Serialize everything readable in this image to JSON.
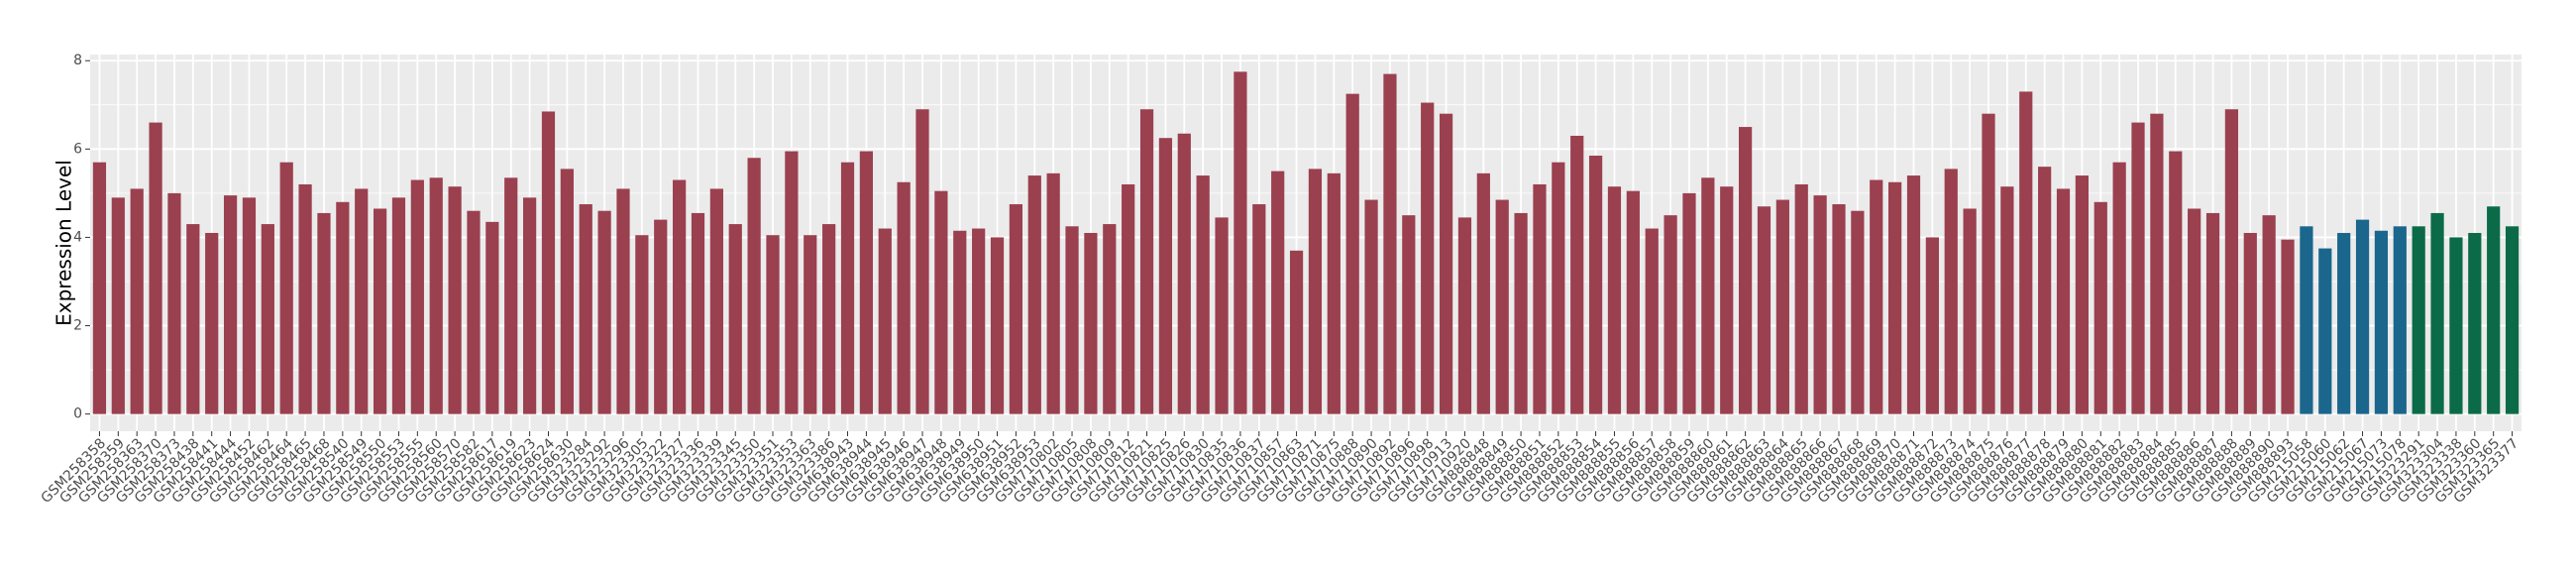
{
  "chart_data": {
    "type": "bar",
    "y_label": "Expression Level",
    "categories": [
      "GSM258358",
      "GSM258359",
      "GSM258363",
      "GSM258370",
      "GSM258373",
      "GSM258438",
      "GSM258441",
      "GSM258444",
      "GSM258452",
      "GSM258462",
      "GSM258464",
      "GSM258465",
      "GSM258468",
      "GSM258540",
      "GSM258549",
      "GSM258550",
      "GSM258553",
      "GSM258555",
      "GSM258560",
      "GSM258570",
      "GSM258582",
      "GSM258617",
      "GSM258619",
      "GSM258623",
      "GSM258624",
      "GSM258630",
      "GSM323284",
      "GSM323292",
      "GSM323296",
      "GSM323305",
      "GSM323322",
      "GSM323327",
      "GSM323336",
      "GSM323339",
      "GSM323345",
      "GSM323350",
      "GSM323351",
      "GSM323353",
      "GSM323363",
      "GSM323386",
      "GSM638943",
      "GSM638944",
      "GSM638945",
      "GSM638946",
      "GSM638947",
      "GSM638948",
      "GSM638949",
      "GSM638950",
      "GSM638951",
      "GSM638952",
      "GSM638953",
      "GSM710802",
      "GSM710805",
      "GSM710808",
      "GSM710809",
      "GSM710812",
      "GSM710821",
      "GSM710825",
      "GSM710826",
      "GSM710830",
      "GSM710835",
      "GSM710836",
      "GSM710837",
      "GSM710857",
      "GSM710863",
      "GSM710871",
      "GSM710875",
      "GSM710888",
      "GSM710890",
      "GSM710892",
      "GSM710896",
      "GSM710898",
      "GSM710913",
      "GSM710920",
      "GSM888848",
      "GSM888849",
      "GSM888850",
      "GSM888851",
      "GSM888852",
      "GSM888853",
      "GSM888854",
      "GSM888855",
      "GSM888856",
      "GSM888857",
      "GSM888858",
      "GSM888859",
      "GSM888860",
      "GSM888861",
      "GSM888862",
      "GSM888863",
      "GSM888864",
      "GSM888865",
      "GSM888866",
      "GSM888867",
      "GSM888868",
      "GSM888869",
      "GSM888870",
      "GSM888871",
      "GSM888872",
      "GSM888873",
      "GSM888874",
      "GSM888875",
      "GSM888876",
      "GSM888877",
      "GSM888878",
      "GSM888879",
      "GSM888880",
      "GSM888881",
      "GSM888882",
      "GSM888883",
      "GSM888884",
      "GSM888885",
      "GSM888886",
      "GSM888887",
      "GSM888888",
      "GSM888889",
      "GSM888890",
      "GSM888893",
      "GSM215058",
      "GSM215060",
      "GSM215062",
      "GSM215067",
      "GSM215073",
      "GSM215078",
      "GSM323291",
      "GSM323304",
      "GSM323338",
      "GSM323360",
      "GSM323365",
      "GSM323377"
    ],
    "values": [
      5.7,
      4.9,
      5.1,
      6.6,
      5.0,
      4.3,
      4.1,
      4.95,
      4.9,
      4.3,
      5.7,
      5.2,
      4.55,
      4.8,
      5.1,
      4.65,
      4.9,
      5.3,
      5.35,
      5.15,
      4.6,
      4.35,
      5.35,
      4.9,
      6.85,
      5.55,
      4.75,
      4.6,
      5.1,
      4.05,
      4.4,
      5.3,
      4.55,
      5.1,
      4.3,
      5.8,
      4.05,
      5.95,
      4.05,
      4.3,
      5.7,
      5.95,
      4.2,
      5.25,
      6.9,
      5.05,
      4.15,
      4.2,
      4.0,
      4.75,
      5.4,
      5.45,
      4.25,
      4.1,
      4.3,
      5.2,
      6.9,
      6.25,
      6.35,
      5.4,
      4.45,
      7.75,
      4.75,
      5.5,
      3.7,
      5.55,
      5.45,
      7.25,
      4.85,
      7.7,
      4.5,
      7.05,
      6.8,
      4.45,
      5.45,
      4.85,
      4.55,
      5.2,
      5.7,
      6.3,
      5.85,
      5.15,
      5.05,
      4.2,
      4.5,
      5.0,
      5.35,
      5.15,
      6.5,
      4.7,
      4.85,
      5.2,
      4.95,
      4.75,
      4.6,
      5.3,
      5.25,
      5.4,
      4.0,
      5.55,
      4.65,
      6.8,
      5.15,
      7.3,
      5.6,
      5.1,
      5.4,
      4.8,
      5.7,
      6.6,
      6.8,
      5.95,
      4.65,
      4.55,
      6.9,
      4.1,
      4.5,
      3.95,
      4.25,
      3.75,
      4.1,
      4.4,
      4.15,
      4.25,
      4.25,
      4.55,
      4.0,
      4.1,
      4.7,
      4.25
    ],
    "colors": [
      "#9b404f",
      "#9b404f",
      "#9b404f",
      "#9b404f",
      "#9b404f",
      "#9b404f",
      "#9b404f",
      "#9b404f",
      "#9b404f",
      "#9b404f",
      "#9b404f",
      "#9b404f",
      "#9b404f",
      "#9b404f",
      "#9b404f",
      "#9b404f",
      "#9b404f",
      "#9b404f",
      "#9b404f",
      "#9b404f",
      "#9b404f",
      "#9b404f",
      "#9b404f",
      "#9b404f",
      "#9b404f",
      "#9b404f",
      "#9b404f",
      "#9b404f",
      "#9b404f",
      "#9b404f",
      "#9b404f",
      "#9b404f",
      "#9b404f",
      "#9b404f",
      "#9b404f",
      "#9b404f",
      "#9b404f",
      "#9b404f",
      "#9b404f",
      "#9b404f",
      "#9b404f",
      "#9b404f",
      "#9b404f",
      "#9b404f",
      "#9b404f",
      "#9b404f",
      "#9b404f",
      "#9b404f",
      "#9b404f",
      "#9b404f",
      "#9b404f",
      "#9b404f",
      "#9b404f",
      "#9b404f",
      "#9b404f",
      "#9b404f",
      "#9b404f",
      "#9b404f",
      "#9b404f",
      "#9b404f",
      "#9b404f",
      "#9b404f",
      "#9b404f",
      "#9b404f",
      "#9b404f",
      "#9b404f",
      "#9b404f",
      "#9b404f",
      "#9b404f",
      "#9b404f",
      "#9b404f",
      "#9b404f",
      "#9b404f",
      "#9b404f",
      "#9b404f",
      "#9b404f",
      "#9b404f",
      "#9b404f",
      "#9b404f",
      "#9b404f",
      "#9b404f",
      "#9b404f",
      "#9b404f",
      "#9b404f",
      "#9b404f",
      "#9b404f",
      "#9b404f",
      "#9b404f",
      "#9b404f",
      "#9b404f",
      "#9b404f",
      "#9b404f",
      "#9b404f",
      "#9b404f",
      "#9b404f",
      "#9b404f",
      "#9b404f",
      "#9b404f",
      "#9b404f",
      "#9b404f",
      "#9b404f",
      "#9b404f",
      "#9b404f",
      "#9b404f",
      "#9b404f",
      "#9b404f",
      "#9b404f",
      "#9b404f",
      "#9b404f",
      "#9b404f",
      "#9b404f",
      "#9b404f",
      "#9b404f",
      "#9b404f",
      "#9b404f",
      "#9b404f",
      "#9b404f",
      "#9b404f",
      "#1b668c",
      "#1b668c",
      "#1b668c",
      "#1b668c",
      "#1b668c",
      "#1b668c",
      "#0b6b48",
      "#0b6b48",
      "#0b6b48",
      "#0b6b48",
      "#0b6b48",
      "#0b6b48"
    ],
    "ylim": [
      -0.39,
      8.14
    ],
    "yticks": [
      0,
      2,
      4,
      6,
      8
    ],
    "minor_yticks": [
      1,
      3,
      5,
      7
    ],
    "grid": true
  }
}
